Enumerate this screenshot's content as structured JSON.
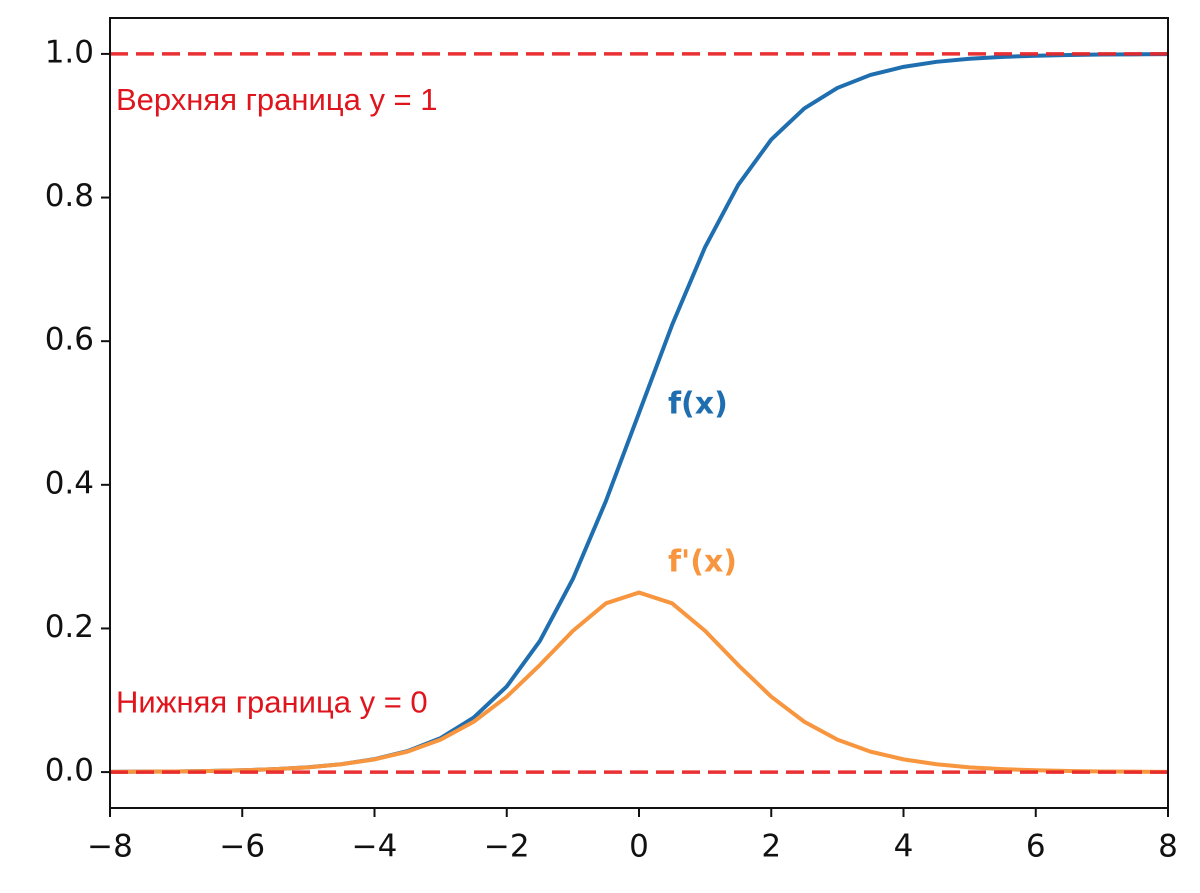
{
  "chart_data": {
    "type": "line",
    "x": [
      -8,
      -7.5,
      -7,
      -6.5,
      -6,
      -5.5,
      -5,
      -4.5,
      -4,
      -3.5,
      -3,
      -2.5,
      -2,
      -1.5,
      -1,
      -0.5,
      0,
      0.5,
      1,
      1.5,
      2,
      2.5,
      3,
      3.5,
      4,
      4.5,
      5,
      5.5,
      6,
      6.5,
      7,
      7.5,
      8
    ],
    "series": [
      {
        "name": "f(x)",
        "color": "#1f6fb0",
        "values": [
          0.0003,
          0.0006,
          0.0009,
          0.0015,
          0.0025,
          0.0041,
          0.0067,
          0.011,
          0.018,
          0.0293,
          0.0474,
          0.0759,
          0.1192,
          0.1824,
          0.2689,
          0.3775,
          0.5,
          0.6225,
          0.7311,
          0.8176,
          0.8808,
          0.9241,
          0.9526,
          0.9707,
          0.982,
          0.989,
          0.9933,
          0.9959,
          0.9975,
          0.9985,
          0.9991,
          0.9994,
          0.9997
        ]
      },
      {
        "name": "f'(x)",
        "color": "#f7963f",
        "values": [
          0.0003,
          0.0006,
          0.0009,
          0.0015,
          0.0025,
          0.0041,
          0.0066,
          0.0109,
          0.0177,
          0.0285,
          0.0452,
          0.0701,
          0.105,
          0.1491,
          0.1966,
          0.235,
          0.25,
          0.235,
          0.1966,
          0.1491,
          0.105,
          0.0701,
          0.0452,
          0.0285,
          0.0177,
          0.0109,
          0.0066,
          0.0041,
          0.0025,
          0.0015,
          0.0009,
          0.0006,
          0.0003
        ]
      }
    ],
    "hlines": [
      {
        "value": 1,
        "label": "Верхняя граница y = 1"
      },
      {
        "value": 0,
        "label": "Нижняя граница y = 0"
      }
    ],
    "hline_color": "#e8262a",
    "xlim": [
      -8,
      8
    ],
    "ylim": [
      -0.05,
      1.05
    ],
    "xticks": [
      {
        "value": -8,
        "label": "−8"
      },
      {
        "value": -6,
        "label": "−6"
      },
      {
        "value": -4,
        "label": "−4"
      },
      {
        "value": -2,
        "label": "−2"
      },
      0,
      2,
      4,
      6,
      8
    ],
    "yticks": [
      {
        "value": 0,
        "label": "0.0"
      },
      0.2,
      0.4,
      0.6,
      0.8,
      {
        "value": 1,
        "label": "1.0"
      }
    ]
  }
}
